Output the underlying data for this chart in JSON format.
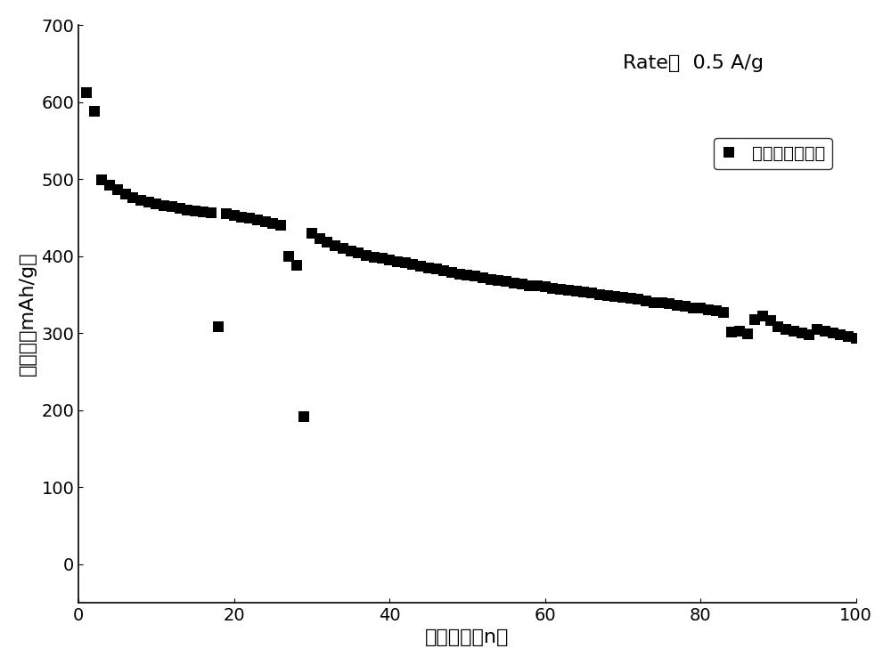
{
  "title_annotation": "Rate：  0.5 A/g",
  "xlabel": "循环圈数（n）",
  "ylabel": "比容量（mAh/g）",
  "legend_label": "再生金属硫化物",
  "xlim": [
    0,
    100
  ],
  "ylim": [
    -50,
    700
  ],
  "yticks": [
    0,
    100,
    200,
    300,
    400,
    500,
    600,
    700
  ],
  "xticks": [
    0,
    20,
    40,
    60,
    80,
    100
  ],
  "marker": "s",
  "marker_color": "#000000",
  "marker_size": 8,
  "data_x": [
    1,
    2,
    3,
    4,
    5,
    6,
    7,
    8,
    9,
    10,
    11,
    12,
    13,
    14,
    15,
    16,
    17,
    18,
    19,
    20,
    21,
    22,
    23,
    24,
    25,
    26,
    27,
    28,
    29,
    30,
    31,
    32,
    33,
    34,
    35,
    36,
    37,
    38,
    39,
    40,
    41,
    42,
    43,
    44,
    45,
    46,
    47,
    48,
    49,
    50,
    51,
    52,
    53,
    54,
    55,
    56,
    57,
    58,
    59,
    60,
    61,
    62,
    63,
    64,
    65,
    66,
    67,
    68,
    69,
    70,
    71,
    72,
    73,
    74,
    75,
    76,
    77,
    78,
    79,
    80,
    81,
    82,
    83,
    84,
    85,
    86,
    87,
    88,
    89,
    90,
    91,
    92,
    93,
    94,
    95,
    96,
    97,
    98,
    99,
    100
  ],
  "data_y": [
    612,
    588,
    499,
    492,
    486,
    481,
    476,
    472,
    470,
    468,
    466,
    464,
    462,
    460,
    459,
    458,
    456,
    308,
    455,
    453,
    451,
    449,
    447,
    445,
    442,
    440,
    400,
    388,
    192,
    430,
    423,
    418,
    413,
    410,
    407,
    404,
    401,
    399,
    397,
    395,
    393,
    391,
    389,
    387,
    385,
    383,
    381,
    379,
    377,
    375,
    374,
    372,
    370,
    368,
    367,
    365,
    364,
    362,
    361,
    360,
    358,
    357,
    356,
    354,
    353,
    352,
    350,
    349,
    348,
    347,
    345,
    344,
    342,
    340,
    339,
    338,
    336,
    335,
    333,
    332,
    330,
    329,
    327,
    301,
    302,
    299,
    317,
    322,
    316,
    308,
    305,
    302,
    300,
    298,
    305,
    302,
    300,
    298,
    296,
    293
  ]
}
